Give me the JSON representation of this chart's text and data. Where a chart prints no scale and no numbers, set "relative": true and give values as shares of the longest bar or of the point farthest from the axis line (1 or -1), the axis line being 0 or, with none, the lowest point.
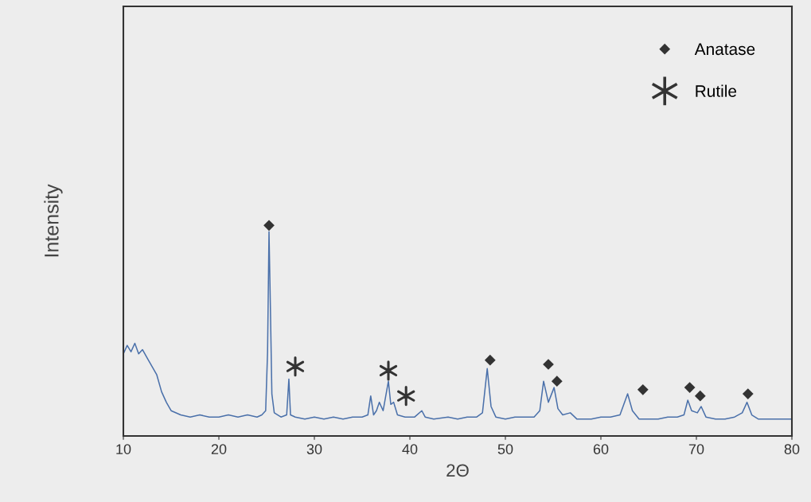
{
  "chart_data": {
    "type": "line",
    "xlabel": "2Θ",
    "ylabel": "Intensity",
    "relative": true,
    "xlim": [
      10,
      80
    ],
    "xticks": [
      10,
      20,
      30,
      40,
      50,
      60,
      70,
      80
    ],
    "tick_labels": "x",
    "grid": false,
    "legend": "top right",
    "series": [
      {
        "color": "#4a70aa",
        "marker": "none",
        "line_style": "solid",
        "x": [
          10.0,
          10.4,
          10.8,
          11.2,
          11.6,
          12.0,
          12.5,
          13.0,
          13.5,
          14.0,
          14.5,
          15.0,
          16,
          17,
          18,
          19,
          20,
          21,
          22,
          23,
          24,
          24.5,
          24.9,
          25.1,
          25.25,
          25.4,
          25.55,
          25.8,
          26.5,
          27.1,
          27.33,
          27.5,
          28.0,
          29,
          30,
          31,
          32,
          33,
          34,
          35,
          35.6,
          35.9,
          36.2,
          36.5,
          36.8,
          37.2,
          37.75,
          38.0,
          38.3,
          38.7,
          39.5,
          40.5,
          41.25,
          41.6,
          42.5,
          44,
          45,
          46,
          47,
          47.6,
          48.1,
          48.5,
          49,
          50,
          51,
          52,
          53,
          53.6,
          54.0,
          54.5,
          55.1,
          55.5,
          56,
          56.8,
          57.5,
          59,
          60,
          61,
          62,
          62.8,
          63.3,
          64,
          65,
          66,
          67,
          68,
          68.7,
          69.1,
          69.5,
          70.1,
          70.5,
          71,
          72,
          73,
          74,
          74.8,
          75.3,
          75.8,
          76.5,
          78,
          79,
          80
        ],
        "values": [
          0.39,
          0.43,
          0.4,
          0.44,
          0.39,
          0.41,
          0.37,
          0.33,
          0.29,
          0.21,
          0.16,
          0.12,
          0.1,
          0.09,
          0.1,
          0.09,
          0.09,
          0.1,
          0.09,
          0.1,
          0.09,
          0.1,
          0.12,
          0.4,
          0.97,
          0.6,
          0.2,
          0.11,
          0.09,
          0.1,
          0.27,
          0.1,
          0.09,
          0.08,
          0.09,
          0.08,
          0.09,
          0.08,
          0.09,
          0.09,
          0.1,
          0.19,
          0.1,
          0.12,
          0.16,
          0.12,
          0.26,
          0.15,
          0.16,
          0.1,
          0.09,
          0.09,
          0.12,
          0.09,
          0.08,
          0.09,
          0.08,
          0.09,
          0.09,
          0.11,
          0.32,
          0.14,
          0.09,
          0.08,
          0.09,
          0.09,
          0.09,
          0.12,
          0.26,
          0.16,
          0.23,
          0.13,
          0.1,
          0.11,
          0.08,
          0.08,
          0.09,
          0.09,
          0.1,
          0.2,
          0.12,
          0.08,
          0.08,
          0.08,
          0.09,
          0.09,
          0.1,
          0.17,
          0.12,
          0.11,
          0.14,
          0.09,
          0.08,
          0.08,
          0.09,
          0.11,
          0.16,
          0.1,
          0.08,
          0.08,
          0.08,
          0.08
        ]
      },
      {
        "type": "scatter",
        "name": "Anatase",
        "color": "#333333",
        "marker": "diamond",
        "x": [
          25.25,
          48.4,
          54.5,
          55.4,
          64.4,
          69.3,
          70.4,
          75.4
        ],
        "values": [
          1.0,
          0.36,
          0.34,
          0.26,
          0.22,
          0.23,
          0.19,
          0.2
        ]
      },
      {
        "type": "scatter",
        "name": "Rutile",
        "color": "#333333",
        "marker": "cross",
        "x": [
          28.0,
          37.75,
          39.6
        ],
        "values": [
          0.33,
          0.31,
          0.19
        ]
      }
    ]
  }
}
